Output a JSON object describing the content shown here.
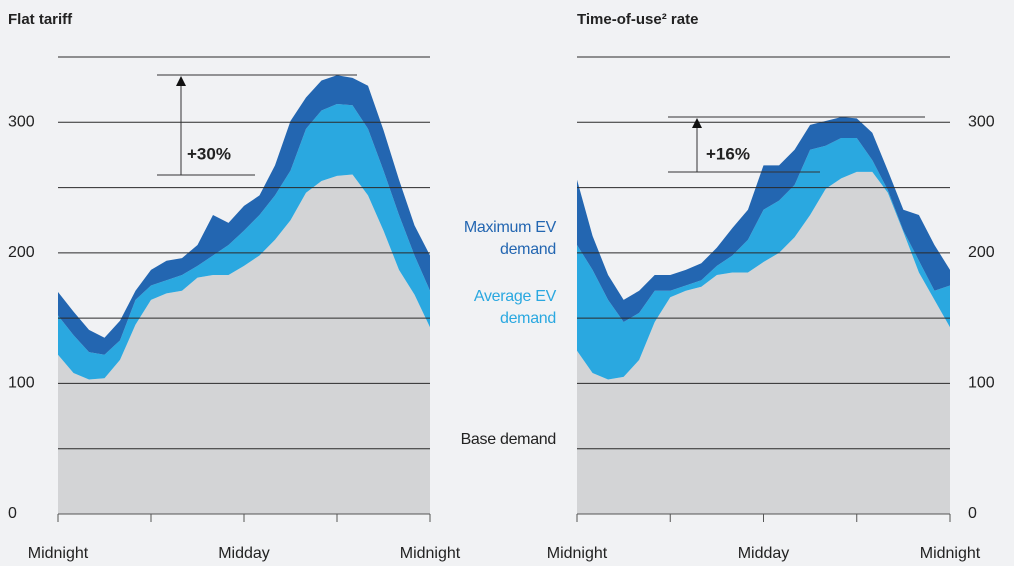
{
  "chart_data": [
    {
      "type": "stacked-area",
      "title": "Flat tariff",
      "annotation": "+30%",
      "x": [
        0,
        1,
        2,
        3,
        4,
        5,
        6,
        7,
        8,
        9,
        10,
        11,
        12,
        13,
        14,
        15,
        16,
        17,
        18,
        19,
        20,
        21,
        22,
        23,
        24
      ],
      "xlim": [
        0,
        24
      ],
      "xticks": [
        {
          "value": 0,
          "label": "Midnight"
        },
        {
          "value": 12,
          "label": "Midday"
        },
        {
          "value": 24,
          "label": "Midnight"
        }
      ],
      "minor_xticks": [
        6,
        18
      ],
      "ylim": [
        0,
        350
      ],
      "yticks": [
        0,
        100,
        200,
        300
      ],
      "ygrid": [
        50,
        100,
        150,
        200,
        250,
        300,
        350
      ],
      "y_axis_side": "left",
      "series": [
        {
          "name": "Base demand",
          "color": "#d3d4d6",
          "values": [
            122,
            108,
            103,
            104,
            118,
            145,
            164,
            169,
            171,
            181,
            183,
            183,
            190,
            198,
            210,
            225,
            246,
            255,
            259,
            260,
            244,
            217,
            187,
            168,
            143
          ]
        },
        {
          "name": "Average EV demand",
          "color": "#2aa8e0",
          "values": [
            30,
            29,
            21,
            18,
            15,
            19,
            11,
            10,
            12,
            9,
            15,
            23,
            27,
            31,
            34,
            38,
            49,
            54,
            55,
            53,
            51,
            46,
            42,
            30,
            28
          ]
        },
        {
          "name": "Maximum EV demand",
          "color": "#2366b1",
          "values": [
            18,
            18,
            17,
            13,
            15,
            7,
            12,
            15,
            13,
            16,
            31,
            17,
            19,
            15,
            23,
            38,
            24,
            23,
            22,
            21,
            33,
            31,
            27,
            23,
            27
          ]
        }
      ]
    },
    {
      "type": "stacked-area",
      "title": "Time-of-use² rate",
      "annotation": "+16%",
      "x": [
        0,
        1,
        2,
        3,
        4,
        5,
        6,
        7,
        8,
        9,
        10,
        11,
        12,
        13,
        14,
        15,
        16,
        17,
        18,
        19,
        20,
        21,
        22,
        23,
        24
      ],
      "xlim": [
        0,
        24
      ],
      "xticks": [
        {
          "value": 0,
          "label": "Midnight"
        },
        {
          "value": 12,
          "label": "Midday"
        },
        {
          "value": 24,
          "label": "Midnight"
        }
      ],
      "minor_xticks": [
        6,
        18
      ],
      "ylim": [
        0,
        350
      ],
      "yticks": [
        0,
        100,
        200,
        300
      ],
      "ygrid": [
        50,
        100,
        150,
        200,
        250,
        300,
        350
      ],
      "y_axis_side": "right",
      "series": [
        {
          "color": "#d3d4d6",
          "values": [
            125,
            108,
            103,
            105,
            118,
            147,
            166,
            171,
            174,
            183,
            185,
            185,
            193,
            200,
            212,
            229,
            249,
            257,
            262,
            262,
            246,
            216,
            185,
            164,
            143
          ]
        },
        {
          "color": "#2aa8e0",
          "values": [
            81,
            79,
            61,
            42,
            36,
            24,
            5,
            4,
            5,
            7,
            13,
            25,
            40,
            40,
            40,
            50,
            33,
            31,
            26,
            9,
            2,
            1,
            9,
            7,
            32
          ]
        },
        {
          "color": "#2366b1",
          "values": [
            50,
            26,
            19,
            17,
            17,
            12,
            12,
            12,
            13,
            14,
            21,
            23,
            34,
            27,
            27,
            19,
            19,
            16,
            15,
            21,
            15,
            16,
            35,
            35,
            12
          ]
        }
      ]
    }
  ]
}
